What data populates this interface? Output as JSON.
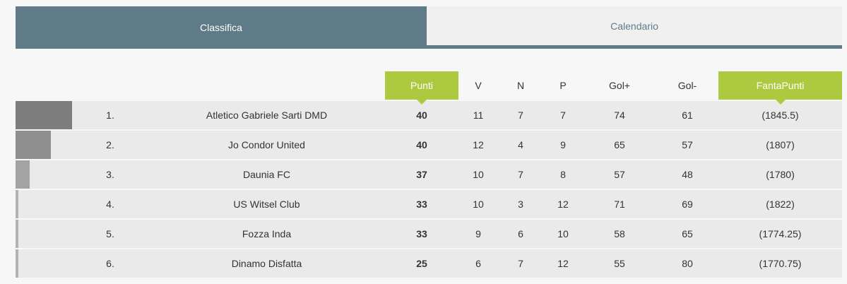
{
  "tabs": [
    {
      "label": "Classifica",
      "active": true
    },
    {
      "label": "Calendario",
      "active": false
    }
  ],
  "columns": {
    "punti": "Punti",
    "v": "V",
    "n": "N",
    "p": "P",
    "gol_plus": "Gol+",
    "gol_minus": "Gol-",
    "fantapunti": "FantaPunti"
  },
  "colors": {
    "tab_active": "#5f7b87",
    "highlight": "#adc93f",
    "row_bg": "#eaeaea"
  },
  "rows": [
    {
      "pos": "1.",
      "team": "Atletico Gabriele Sarti DMD",
      "punti": "40",
      "v": "11",
      "n": "7",
      "p": "7",
      "gol_plus": "74",
      "gol_minus": "61",
      "fantapunti": "(1845.5)",
      "bar_fraction": 1.0,
      "bar_color": "#7d7d7d"
    },
    {
      "pos": "2.",
      "team": "Jo Condor United",
      "punti": "40",
      "v": "12",
      "n": "4",
      "p": "9",
      "gol_plus": "65",
      "gol_minus": "57",
      "fantapunti": "(1807)",
      "bar_fraction": 0.625,
      "bar_color": "#8f8f8f"
    },
    {
      "pos": "3.",
      "team": "Daunia FC",
      "punti": "37",
      "v": "10",
      "n": "7",
      "p": "8",
      "gol_plus": "57",
      "gol_minus": "48",
      "fantapunti": "(1780)",
      "bar_fraction": 0.25,
      "bar_color": "#a3a3a3"
    },
    {
      "pos": "4.",
      "team": "US Witsel Club",
      "punti": "33",
      "v": "10",
      "n": "3",
      "p": "12",
      "gol_plus": "71",
      "gol_minus": "69",
      "fantapunti": "(1822)",
      "bar_fraction": 0.05,
      "bar_color": "#b3b3b3"
    },
    {
      "pos": "5.",
      "team": "Fozza Inda",
      "punti": "33",
      "v": "9",
      "n": "6",
      "p": "10",
      "gol_plus": "58",
      "gol_minus": "65",
      "fantapunti": "(1774.25)",
      "bar_fraction": 0.05,
      "bar_color": "#b3b3b3"
    },
    {
      "pos": "6.",
      "team": "Dinamo Disfatta",
      "punti": "25",
      "v": "6",
      "n": "7",
      "p": "12",
      "gol_plus": "55",
      "gol_minus": "80",
      "fantapunti": "(1770.75)",
      "bar_fraction": 0.05,
      "bar_color": "#b3b3b3"
    }
  ]
}
